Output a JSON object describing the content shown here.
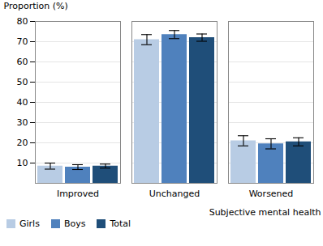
{
  "chart_data": {
    "type": "bar",
    "xlabel": "Subjective mental health",
    "ylabel": "Proportion (%)",
    "categories": [
      "Improved",
      "Unchanged",
      "Worsened"
    ],
    "series": [
      {
        "name": "Girls",
        "color": "#b8cce4",
        "values": [
          8.5,
          71.0,
          21.0
        ],
        "errors": [
          1.5,
          2.5,
          2.5
        ]
      },
      {
        "name": "Boys",
        "color": "#4f81bd",
        "values": [
          8.0,
          73.5,
          19.5
        ],
        "errors": [
          1.2,
          2.0,
          2.5
        ]
      },
      {
        "name": "Total",
        "color": "#1f4e79",
        "values": [
          8.5,
          72.0,
          20.5
        ],
        "errors": [
          1.0,
          1.8,
          2.0
        ]
      }
    ],
    "ylim": [
      0,
      80
    ],
    "yticks": [
      10,
      20,
      30,
      40,
      50,
      60,
      70,
      80
    ],
    "grid": true,
    "legend": "lower left"
  }
}
